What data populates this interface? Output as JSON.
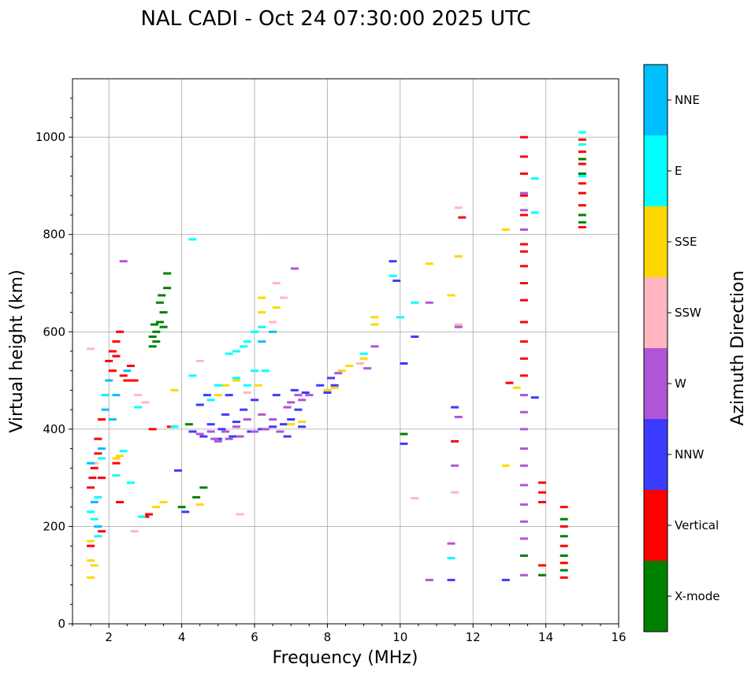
{
  "chart_data": {
    "type": "scatter",
    "title": "NAL CADI - Oct 24 07:30:00 2025 UTC",
    "xlabel": "Frequency (MHz)",
    "ylabel": "Virtual height (km)",
    "xlim": [
      1,
      16
    ],
    "ylim": [
      0,
      1120
    ],
    "xticks": [
      2,
      4,
      6,
      8,
      10,
      12,
      14,
      16
    ],
    "yticks": [
      0,
      200,
      400,
      600,
      800,
      1000
    ],
    "grid": true,
    "colorbar": {
      "title": "Azimuth Direction",
      "categories": [
        {
          "label": "X-mode",
          "color": "#008000"
        },
        {
          "label": "Vertical",
          "color": "#ff0000"
        },
        {
          "label": "NNW",
          "color": "#3b3bff"
        },
        {
          "label": "W",
          "color": "#b055d8"
        },
        {
          "label": "SSW",
          "color": "#ffb6c1"
        },
        {
          "label": "SSE",
          "color": "#ffd700"
        },
        {
          "label": "E",
          "color": "#00ffff"
        },
        {
          "label": "NNE",
          "color": "#00bfff"
        }
      ]
    },
    "series": [
      {
        "name": "X-mode",
        "points": [
          [
            3.3,
            600
          ],
          [
            3.4,
            620
          ],
          [
            3.5,
            640
          ],
          [
            3.2,
            590
          ],
          [
            3.3,
            580
          ],
          [
            3.4,
            660
          ],
          [
            3.6,
            690
          ],
          [
            3.6,
            720
          ],
          [
            3.5,
            610
          ],
          [
            3.2,
            570
          ],
          [
            3.45,
            675
          ],
          [
            3.25,
            615
          ],
          [
            4.6,
            280
          ],
          [
            4.4,
            260
          ],
          [
            4.2,
            410
          ],
          [
            4.0,
            240
          ],
          [
            10.1,
            390
          ],
          [
            13.4,
            140
          ],
          [
            13.9,
            100
          ],
          [
            14.5,
            215
          ],
          [
            14.5,
            180
          ],
          [
            14.5,
            140
          ],
          [
            14.5,
            110
          ],
          [
            15.0,
            840
          ],
          [
            15.0,
            825
          ],
          [
            15.0,
            925
          ],
          [
            15.0,
            955
          ]
        ]
      },
      {
        "name": "Vertical",
        "points": [
          [
            1.5,
            280
          ],
          [
            1.55,
            300
          ],
          [
            1.6,
            320
          ],
          [
            1.7,
            350
          ],
          [
            1.8,
            420
          ],
          [
            1.9,
            470
          ],
          [
            2.1,
            520
          ],
          [
            2.2,
            550
          ],
          [
            2.4,
            510
          ],
          [
            2.6,
            530
          ],
          [
            2.2,
            580
          ],
          [
            2.3,
            600
          ],
          [
            2.0,
            540
          ],
          [
            2.1,
            560
          ],
          [
            2.5,
            500
          ],
          [
            1.7,
            380
          ],
          [
            1.8,
            300
          ],
          [
            2.2,
            330
          ],
          [
            2.3,
            250
          ],
          [
            3.0,
            220
          ],
          [
            3.1,
            225
          ],
          [
            3.2,
            400
          ],
          [
            3.7,
            405
          ],
          [
            2.7,
            500
          ],
          [
            1.5,
            160
          ],
          [
            1.8,
            190
          ],
          [
            13.4,
            1000
          ],
          [
            13.4,
            960
          ],
          [
            13.4,
            925
          ],
          [
            13.4,
            880
          ],
          [
            13.4,
            840
          ],
          [
            13.4,
            780
          ],
          [
            13.4,
            765
          ],
          [
            13.4,
            735
          ],
          [
            13.4,
            700
          ],
          [
            13.4,
            665
          ],
          [
            13.4,
            620
          ],
          [
            13.4,
            580
          ],
          [
            13.4,
            545
          ],
          [
            13.4,
            510
          ],
          [
            13.0,
            495
          ],
          [
            13.9,
            290
          ],
          [
            13.9,
            270
          ],
          [
            13.9,
            250
          ],
          [
            13.9,
            120
          ],
          [
            11.7,
            835
          ],
          [
            11.5,
            375
          ],
          [
            14.5,
            240
          ],
          [
            14.5,
            200
          ],
          [
            14.5,
            160
          ],
          [
            14.5,
            125
          ],
          [
            14.5,
            95
          ],
          [
            15.0,
            995
          ],
          [
            15.0,
            970
          ],
          [
            15.0,
            945
          ],
          [
            15.0,
            905
          ],
          [
            15.0,
            885
          ],
          [
            15.0,
            860
          ],
          [
            15.0,
            815
          ]
        ]
      },
      {
        "name": "NNW",
        "points": [
          [
            4.3,
            395
          ],
          [
            4.6,
            385
          ],
          [
            5.0,
            380
          ],
          [
            5.4,
            385
          ],
          [
            5.9,
            395
          ],
          [
            6.2,
            400
          ],
          [
            6.5,
            405
          ],
          [
            6.8,
            410
          ],
          [
            7.0,
            420
          ],
          [
            7.2,
            440
          ],
          [
            4.8,
            410
          ],
          [
            5.2,
            430
          ],
          [
            5.5,
            415
          ],
          [
            5.7,
            440
          ],
          [
            6.0,
            460
          ],
          [
            4.5,
            450
          ],
          [
            4.7,
            470
          ],
          [
            5.3,
            470
          ],
          [
            6.6,
            470
          ],
          [
            7.1,
            480
          ],
          [
            7.4,
            475
          ],
          [
            7.8,
            490
          ],
          [
            8.1,
            505
          ],
          [
            8.2,
            490
          ],
          [
            8.0,
            475
          ],
          [
            3.9,
            315
          ],
          [
            4.1,
            230
          ],
          [
            9.8,
            745
          ],
          [
            9.9,
            705
          ],
          [
            10.1,
            535
          ],
          [
            10.1,
            370
          ],
          [
            10.4,
            590
          ],
          [
            6.9,
            385
          ],
          [
            7.3,
            405
          ],
          [
            5.1,
            400
          ],
          [
            12.9,
            90
          ],
          [
            13.7,
            465
          ],
          [
            11.4,
            90
          ],
          [
            11.5,
            445
          ]
        ]
      },
      {
        "name": "W",
        "points": [
          [
            4.5,
            390
          ],
          [
            4.8,
            395
          ],
          [
            5.0,
            375
          ],
          [
            5.3,
            380
          ],
          [
            5.6,
            385
          ],
          [
            6.0,
            395
          ],
          [
            6.3,
            400
          ],
          [
            6.7,
            395
          ],
          [
            7.0,
            455
          ],
          [
            7.2,
            470
          ],
          [
            7.5,
            470
          ],
          [
            6.5,
            420
          ],
          [
            6.2,
            430
          ],
          [
            5.8,
            420
          ],
          [
            5.2,
            395
          ],
          [
            4.9,
            380
          ],
          [
            7.1,
            730
          ],
          [
            2.4,
            745
          ],
          [
            5.5,
            405
          ],
          [
            8.3,
            515
          ],
          [
            9.1,
            525
          ],
          [
            9.3,
            570
          ],
          [
            10.8,
            660
          ],
          [
            10.8,
            90
          ],
          [
            11.6,
            610
          ],
          [
            11.6,
            425
          ],
          [
            11.5,
            325
          ],
          [
            11.4,
            165
          ],
          [
            13.4,
            885
          ],
          [
            13.4,
            850
          ],
          [
            13.4,
            810
          ],
          [
            13.4,
            470
          ],
          [
            13.4,
            435
          ],
          [
            13.4,
            400
          ],
          [
            13.4,
            360
          ],
          [
            13.4,
            325
          ],
          [
            13.4,
            285
          ],
          [
            13.4,
            245
          ],
          [
            13.4,
            210
          ],
          [
            13.4,
            175
          ],
          [
            13.4,
            100
          ],
          [
            7.3,
            460
          ],
          [
            6.9,
            445
          ]
        ]
      },
      {
        "name": "SSW",
        "points": [
          [
            1.5,
            565
          ],
          [
            1.6,
            330
          ],
          [
            2.7,
            190
          ],
          [
            4.5,
            540
          ],
          [
            5.6,
            225
          ],
          [
            6.6,
            700
          ],
          [
            6.8,
            670
          ],
          [
            6.5,
            620
          ],
          [
            11.6,
            855
          ],
          [
            11.6,
            615
          ],
          [
            10.4,
            258
          ],
          [
            11.5,
            270
          ],
          [
            8.9,
            535
          ],
          [
            5.8,
            475
          ],
          [
            2.8,
            470
          ],
          [
            3.0,
            455
          ]
        ]
      },
      {
        "name": "SSE",
        "points": [
          [
            1.5,
            170
          ],
          [
            1.5,
            130
          ],
          [
            1.6,
            120
          ],
          [
            2.2,
            340
          ],
          [
            2.3,
            345
          ],
          [
            3.3,
            240
          ],
          [
            3.5,
            250
          ],
          [
            3.8,
            480
          ],
          [
            4.5,
            245
          ],
          [
            5.0,
            470
          ],
          [
            5.2,
            490
          ],
          [
            5.5,
            500
          ],
          [
            6.1,
            490
          ],
          [
            6.2,
            640
          ],
          [
            6.2,
            670
          ],
          [
            6.6,
            650
          ],
          [
            7.0,
            410
          ],
          [
            7.3,
            415
          ],
          [
            8.0,
            480
          ],
          [
            8.2,
            485
          ],
          [
            8.4,
            520
          ],
          [
            8.6,
            530
          ],
          [
            9.0,
            545
          ],
          [
            9.3,
            615
          ],
          [
            9.3,
            630
          ],
          [
            10.8,
            740
          ],
          [
            11.4,
            675
          ],
          [
            11.6,
            755
          ],
          [
            12.9,
            810
          ],
          [
            12.9,
            325
          ],
          [
            13.2,
            485
          ],
          [
            1.5,
            95
          ]
        ]
      },
      {
        "name": "E",
        "points": [
          [
            1.5,
            230
          ],
          [
            1.6,
            215
          ],
          [
            1.7,
            260
          ],
          [
            1.8,
            340
          ],
          [
            1.9,
            470
          ],
          [
            1.7,
            180
          ],
          [
            2.2,
            305
          ],
          [
            2.4,
            355
          ],
          [
            2.9,
            220
          ],
          [
            2.8,
            445
          ],
          [
            2.6,
            290
          ],
          [
            4.3,
            510
          ],
          [
            4.8,
            460
          ],
          [
            5.0,
            490
          ],
          [
            5.5,
            505
          ],
          [
            5.7,
            570
          ],
          [
            5.8,
            580
          ],
          [
            6.0,
            600
          ],
          [
            6.2,
            610
          ],
          [
            5.3,
            555
          ],
          [
            5.5,
            560
          ],
          [
            5.8,
            490
          ],
          [
            6.0,
            520
          ],
          [
            6.3,
            520
          ],
          [
            9.0,
            555
          ],
          [
            9.8,
            715
          ],
          [
            10.0,
            630
          ],
          [
            10.4,
            660
          ],
          [
            11.4,
            135
          ],
          [
            13.7,
            915
          ],
          [
            13.7,
            845
          ],
          [
            15.0,
            1010
          ],
          [
            15.0,
            985
          ],
          [
            15.0,
            920
          ],
          [
            4.3,
            790
          ],
          [
            3.8,
            405
          ]
        ]
      },
      {
        "name": "NNE",
        "points": [
          [
            1.5,
            330
          ],
          [
            1.6,
            250
          ],
          [
            1.7,
            200
          ],
          [
            1.8,
            360
          ],
          [
            1.9,
            440
          ],
          [
            2.0,
            500
          ],
          [
            2.1,
            420
          ],
          [
            2.2,
            470
          ],
          [
            2.5,
            520
          ],
          [
            6.5,
            600
          ],
          [
            6.2,
            580
          ]
        ]
      }
    ]
  }
}
